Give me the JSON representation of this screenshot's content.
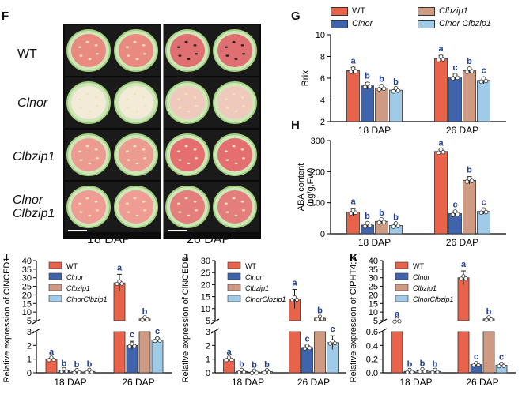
{
  "panels": {
    "F": "F",
    "G": "G",
    "H": "H",
    "I": "I",
    "J": "J",
    "K": "K"
  },
  "photo": {
    "rows": [
      {
        "label": "WT",
        "italic": false
      },
      {
        "label": "Clnor",
        "italic": true
      },
      {
        "label": "Clbzip1",
        "italic": true
      },
      {
        "label": "Clnor\nClbzip1",
        "italic": true
      }
    ],
    "columns": [
      "18 DAP",
      "26 DAP"
    ]
  },
  "colors": {
    "WT": "#e8634a",
    "Clnor": "#3f64ad",
    "Clbzip1": "#cf9a82",
    "ClnorClbzip1": "#9fcbe8",
    "sig": "#1f3f93"
  },
  "legend_G": [
    "WT",
    "Clnor",
    "Clbzip1",
    "Clnor Clbzip1"
  ],
  "legend_small": [
    "WT",
    "Clnor",
    "Clbzip1",
    "ClnorClbzip1"
  ],
  "chart_data": [
    {
      "panel": "G",
      "type": "bar",
      "categories": [
        "18 DAP",
        "26 DAP"
      ],
      "ylabel": "Brix",
      "ylim": [
        2,
        10
      ],
      "yticks": [
        2,
        4,
        6,
        8,
        10
      ],
      "series": [
        {
          "name": "WT",
          "values": [
            6.7,
            7.8
          ],
          "err": [
            0.3,
            0.3
          ],
          "sig": [
            "a",
            "a"
          ]
        },
        {
          "name": "Clnor",
          "values": [
            5.3,
            6.1
          ],
          "err": [
            0.3,
            0.25
          ],
          "sig": [
            "b",
            "c"
          ]
        },
        {
          "name": "Clbzip1",
          "values": [
            5.1,
            6.7
          ],
          "err": [
            0.2,
            0.25
          ],
          "sig": [
            "b",
            "b"
          ]
        },
        {
          "name": "Clnor Clbzip1",
          "values": [
            4.9,
            5.8
          ],
          "err": [
            0.15,
            0.3
          ],
          "sig": [
            "b",
            "c"
          ]
        }
      ]
    },
    {
      "panel": "H",
      "type": "bar",
      "categories": [
        "18 DAP",
        "26 DAP"
      ],
      "ylabel": "ABA content",
      "ylabel2": "(ng/g,FW)",
      "ylim": [
        0,
        300
      ],
      "yticks": [
        0,
        100,
        200,
        300
      ],
      "series": [
        {
          "name": "WT",
          "values": [
            70,
            265
          ],
          "err": [
            12,
            6
          ],
          "sig": [
            "a",
            "a"
          ]
        },
        {
          "name": "Clnor",
          "values": [
            28,
            65
          ],
          "err": [
            8,
            8
          ],
          "sig": [
            "b",
            "c"
          ]
        },
        {
          "name": "Clbzip1",
          "values": [
            40,
            172
          ],
          "err": [
            6,
            12
          ],
          "sig": [
            "b",
            "b"
          ]
        },
        {
          "name": "Clnor Clbzip1",
          "values": [
            27,
            72
          ],
          "err": [
            5,
            8
          ],
          "sig": [
            "b",
            "c"
          ]
        }
      ]
    },
    {
      "panel": "I",
      "type": "bar",
      "broken_axis": true,
      "categories": [
        "18 DAP",
        "26 DAP"
      ],
      "ylabel": "Relative expression of ClNCED1",
      "lower_ylim": [
        0,
        3
      ],
      "lower_yticks": [
        0,
        1,
        2,
        3
      ],
      "upper_ylim": [
        5,
        40
      ],
      "upper_yticks": [
        5,
        10,
        15,
        20,
        25,
        30,
        35,
        40
      ],
      "series": [
        {
          "name": "WT",
          "values": [
            1.0,
            27
          ],
          "err": [
            0.05,
            5
          ],
          "sig": [
            "a",
            "a"
          ]
        },
        {
          "name": "Clnor",
          "values": [
            0.15,
            2.0
          ],
          "err": [
            0.05,
            0.3
          ],
          "sig": [
            "b",
            "c"
          ]
        },
        {
          "name": "Clbzip1",
          "values": [
            0.08,
            6.0
          ],
          "err": [
            0.04,
            0.4
          ],
          "sig": [
            "b",
            "b"
          ]
        },
        {
          "name": "ClnorClbzip1",
          "values": [
            0.1,
            2.4
          ],
          "err": [
            0.04,
            0.15
          ],
          "sig": [
            "b",
            "c"
          ]
        }
      ]
    },
    {
      "panel": "J",
      "type": "bar",
      "broken_axis": true,
      "categories": [
        "18 DAP",
        "26 DAP"
      ],
      "ylabel": "Relative expression of ClNCED3",
      "lower_ylim": [
        0,
        3
      ],
      "lower_yticks": [
        0,
        1,
        2,
        3
      ],
      "upper_ylim": [
        5,
        30
      ],
      "upper_yticks": [
        5,
        10,
        15,
        20,
        25,
        30
      ],
      "series": [
        {
          "name": "WT",
          "values": [
            1.0,
            14
          ],
          "err": [
            0.05,
            4
          ],
          "sig": [
            "a",
            "a"
          ]
        },
        {
          "name": "Clnor",
          "values": [
            0.1,
            1.85
          ],
          "err": [
            0.05,
            0.15
          ],
          "sig": [
            "b",
            "c"
          ]
        },
        {
          "name": "Clbzip1",
          "values": [
            0.05,
            6.0
          ],
          "err": [
            0.03,
            0.4
          ],
          "sig": [
            "b",
            "b"
          ]
        },
        {
          "name": "ClnorClbzip1",
          "values": [
            0.08,
            2.2
          ],
          "err": [
            0.04,
            0.5
          ],
          "sig": [
            "b",
            "c"
          ]
        }
      ]
    },
    {
      "panel": "K",
      "type": "bar",
      "broken_axis": true,
      "categories": [
        "18 DAP",
        "26 DAP"
      ],
      "ylabel": "Relative expression of ClPHT4;2",
      "lower_ylim": [
        0,
        0.6
      ],
      "lower_yticks": [
        0.0,
        0.2,
        0.4,
        0.6
      ],
      "upper_ylim": [
        5,
        40
      ],
      "upper_yticks": [
        5,
        10,
        15,
        20,
        25,
        30,
        35,
        40
      ],
      "series": [
        {
          "name": "WT",
          "values": [
            1.0,
            30
          ],
          "err": [
            0,
            4
          ],
          "sig": [
            "a",
            "a"
          ]
        },
        {
          "name": "Clnor",
          "values": [
            0.02,
            0.12
          ],
          "err": [
            0.01,
            0.02
          ],
          "sig": [
            "b",
            "c"
          ]
        },
        {
          "name": "Clbzip1",
          "values": [
            0.03,
            6.0
          ],
          "err": [
            0.01,
            0.4
          ],
          "sig": [
            "b",
            "b"
          ]
        },
        {
          "name": "ClnorClbzip1",
          "values": [
            0.02,
            0.11
          ],
          "err": [
            0.01,
            0.02
          ],
          "sig": [
            "b",
            "c"
          ]
        }
      ]
    }
  ]
}
